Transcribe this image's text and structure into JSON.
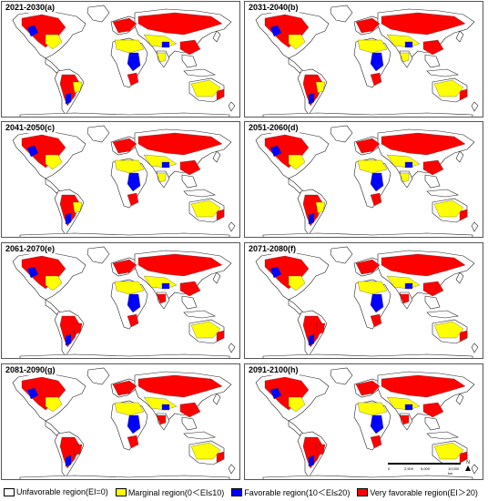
{
  "panels": [
    {
      "label": "2021-2030(a)"
    },
    {
      "label": "2031-2040(b)"
    },
    {
      "label": "2041-2050(c)"
    },
    {
      "label": "2051-2060(d)"
    },
    {
      "label": "2061-2070(e)"
    },
    {
      "label": "2071-2080(f)"
    },
    {
      "label": "2081-2090(g)"
    },
    {
      "label": "2091-2100(h)"
    }
  ],
  "scale_bar": {
    "labels": [
      "0",
      "2,500",
      "5,000",
      "10,000 km"
    ],
    "north": "N"
  },
  "legend": [
    {
      "label": "Unfavorable region(EI=0)",
      "color": "#ffffff"
    },
    {
      "label": "Marginal region(0＜EI≤10)",
      "color": "#ffff00"
    },
    {
      "label": "Favorable region(10＜EI≤20)",
      "color": "#0000ff"
    },
    {
      "label": "Very favorable region(EI＞20)",
      "color": "#ff0000"
    }
  ]
}
